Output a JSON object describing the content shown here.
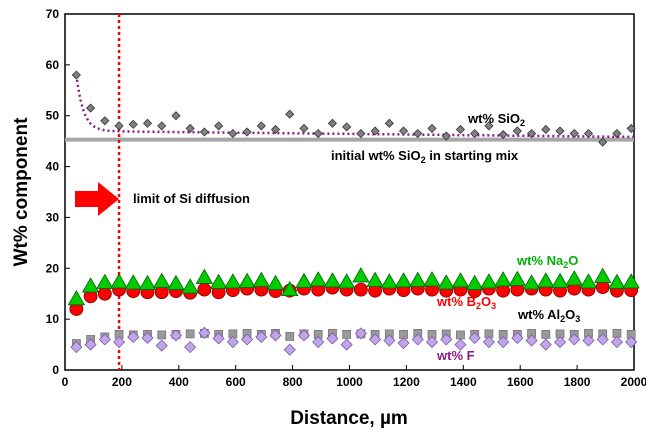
{
  "chart_data": {
    "type": "scatter",
    "xlabel": "Distance, µm",
    "ylabel": "Wt% component",
    "xlim": [
      0,
      2000
    ],
    "ylim": [
      0,
      70
    ],
    "xticks": [
      0,
      200,
      400,
      600,
      800,
      1000,
      1200,
      1400,
      1600,
      1800,
      2000
    ],
    "yticks": [
      0,
      10,
      20,
      30,
      40,
      50,
      60,
      70
    ],
    "grid": false,
    "colors": {
      "sio2": "#808080",
      "sio2_fit": "#8b1a8b",
      "initial_line": "#a6a6a6",
      "na2o": "#00cc00",
      "b2o3": "#ff0000",
      "al2o3": "#999999",
      "f": "#c0a6e8",
      "limit_line": "#ff0000",
      "arrow": "#ff0000"
    },
    "labels": {
      "sio2": "wt% SiO",
      "sio2_sub": "2",
      "initial": "initial wt% SiO",
      "initial_sub": "2",
      "initial_tail": " in starting mix",
      "limit": "limit of Si diffusion",
      "na2o": "wt% Na",
      "na2o_sub": "2",
      "na2o_tail": "O",
      "b2o3": "wt% B",
      "b2o3_sub1": "2",
      "b2o3_mid": "O",
      "b2o3_sub2": "3",
      "al2o3": "wt% Al",
      "al2o3_sub1": "2",
      "al2o3_mid": "O",
      "al2o3_sub2": "3",
      "f": "wt% F"
    },
    "initial_sio2_wt": 45.3,
    "limit_distance": 190,
    "series": [
      {
        "name": "wt% SiO2",
        "marker": "diamond",
        "x": [
          40,
          90,
          140,
          190,
          240,
          290,
          340,
          390,
          440,
          490,
          540,
          590,
          640,
          690,
          740,
          790,
          840,
          890,
          940,
          990,
          1040,
          1090,
          1140,
          1190,
          1240,
          1290,
          1340,
          1390,
          1440,
          1490,
          1540,
          1590,
          1640,
          1690,
          1740,
          1790,
          1840,
          1890,
          1940,
          1990
        ],
        "values": [
          58.0,
          51.5,
          49.0,
          48.0,
          48.3,
          48.5,
          48.0,
          50.0,
          47.5,
          46.8,
          48.0,
          46.5,
          46.8,
          48.0,
          47.3,
          50.3,
          47.5,
          46.5,
          48.5,
          47.8,
          46.5,
          47.0,
          48.5,
          47.0,
          46.5,
          47.5,
          46.0,
          47.3,
          46.5,
          48.0,
          46.3,
          47.0,
          46.5,
          47.3,
          47.0,
          46.5,
          46.5,
          44.8,
          46.5,
          47.5
        ]
      },
      {
        "name": "wt% Na2O",
        "marker": "triangle",
        "x": [
          40,
          90,
          140,
          190,
          240,
          290,
          340,
          390,
          440,
          490,
          540,
          590,
          640,
          690,
          740,
          790,
          840,
          890,
          940,
          990,
          1040,
          1090,
          1140,
          1190,
          1240,
          1290,
          1340,
          1390,
          1440,
          1490,
          1540,
          1590,
          1640,
          1690,
          1740,
          1790,
          1840,
          1890,
          1940,
          1990
        ],
        "values": [
          14.0,
          16.5,
          17.2,
          17.3,
          17.1,
          17.0,
          17.4,
          17.0,
          16.3,
          18.2,
          17.2,
          17.3,
          17.4,
          17.6,
          17.0,
          15.8,
          17.4,
          17.7,
          17.5,
          17.3,
          18.5,
          17.6,
          17.3,
          17.5,
          17.6,
          17.7,
          17.1,
          17.5,
          17.0,
          17.3,
          17.7,
          17.8,
          17.1,
          17.5,
          17.4,
          17.9,
          17.3,
          18.4,
          17.2,
          17.3
        ]
      },
      {
        "name": "wt% B2O3",
        "marker": "circle",
        "x": [
          40,
          90,
          140,
          190,
          240,
          290,
          340,
          390,
          440,
          490,
          540,
          590,
          640,
          690,
          740,
          790,
          840,
          890,
          940,
          990,
          1040,
          1090,
          1140,
          1190,
          1240,
          1290,
          1340,
          1390,
          1440,
          1490,
          1540,
          1590,
          1640,
          1690,
          1740,
          1790,
          1840,
          1890,
          1940,
          1990
        ],
        "values": [
          12.0,
          14.5,
          15.0,
          15.8,
          15.5,
          15.3,
          15.3,
          15.5,
          15.2,
          15.8,
          15.3,
          15.7,
          16.0,
          15.8,
          15.5,
          15.6,
          16.0,
          15.8,
          16.2,
          15.8,
          15.8,
          15.6,
          16.0,
          15.7,
          16.0,
          15.8,
          15.6,
          15.8,
          15.5,
          16.0,
          15.6,
          15.8,
          16.0,
          15.8,
          15.6,
          16.0,
          15.8,
          16.3,
          15.6,
          15.7
        ]
      },
      {
        "name": "wt% Al2O3",
        "marker": "square",
        "x": [
          40,
          90,
          140,
          190,
          240,
          290,
          340,
          390,
          440,
          490,
          540,
          590,
          640,
          690,
          740,
          790,
          840,
          890,
          940,
          990,
          1040,
          1090,
          1140,
          1190,
          1240,
          1290,
          1340,
          1390,
          1440,
          1490,
          1540,
          1590,
          1640,
          1690,
          1740,
          1790,
          1840,
          1890,
          1940,
          1990
        ],
        "values": [
          5.2,
          6.0,
          6.5,
          7.0,
          6.9,
          7.0,
          6.9,
          7.0,
          7.1,
          7.2,
          7.0,
          7.1,
          7.2,
          7.0,
          7.2,
          6.6,
          7.1,
          7.0,
          7.2,
          7.0,
          7.1,
          7.0,
          7.1,
          7.0,
          7.2,
          7.0,
          7.1,
          6.9,
          7.0,
          7.1,
          7.0,
          7.0,
          7.2,
          7.0,
          7.1,
          7.0,
          7.2,
          7.1,
          7.2,
          7.0
        ]
      },
      {
        "name": "wt% F",
        "marker": "diamond",
        "x": [
          40,
          90,
          140,
          190,
          240,
          290,
          340,
          390,
          440,
          490,
          540,
          590,
          640,
          690,
          740,
          790,
          840,
          890,
          940,
          990,
          1040,
          1090,
          1140,
          1190,
          1240,
          1290,
          1340,
          1390,
          1440,
          1490,
          1540,
          1590,
          1640,
          1690,
          1740,
          1790,
          1840,
          1890,
          1940,
          1990
        ],
        "values": [
          4.5,
          5.0,
          6.0,
          5.5,
          6.5,
          6.3,
          4.8,
          6.8,
          4.5,
          7.3,
          6.2,
          5.5,
          6.0,
          6.5,
          6.8,
          4.0,
          6.8,
          5.5,
          6.2,
          5.0,
          7.2,
          6.0,
          5.8,
          5.3,
          6.0,
          5.5,
          6.0,
          5.0,
          6.3,
          5.5,
          5.5,
          6.3,
          5.8,
          5.0,
          5.5,
          6.0,
          5.8,
          6.0,
          5.5,
          5.5
        ]
      }
    ]
  }
}
